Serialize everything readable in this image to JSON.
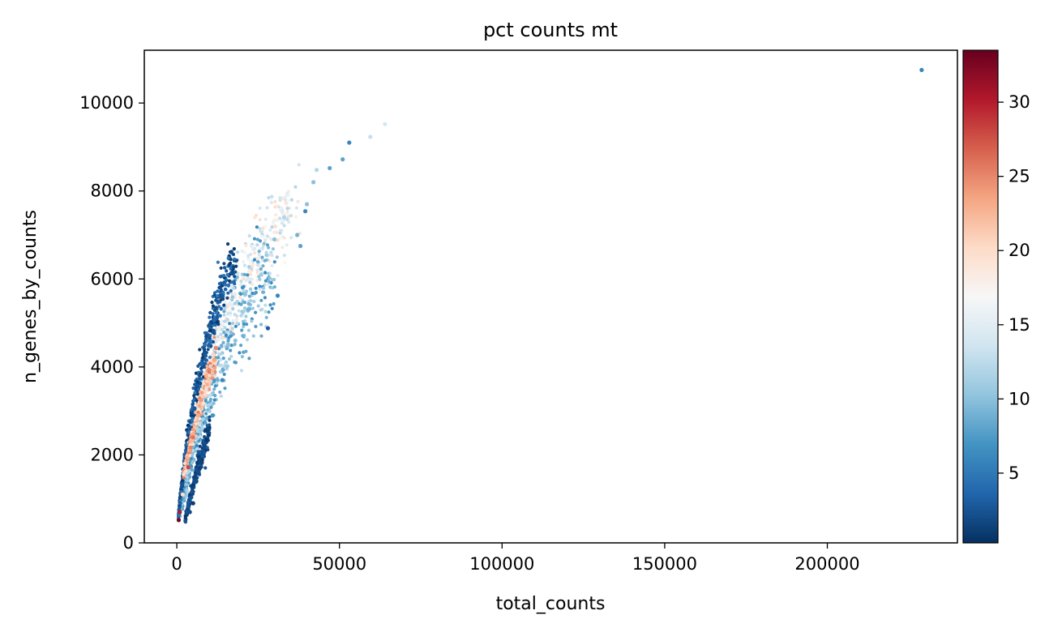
{
  "chart_data": {
    "type": "scatter",
    "title": "pct counts mt",
    "xlabel": "total_counts",
    "ylabel": "n_genes_by_counts",
    "xlim": [
      -10000,
      240000
    ],
    "ylim": [
      0,
      11200
    ],
    "xticks": [
      0,
      50000,
      100000,
      150000,
      200000
    ],
    "yticks": [
      0,
      2000,
      4000,
      6000,
      8000,
      10000
    ],
    "grid": false,
    "colormap": "RdBu_r",
    "colorbar": {
      "label": "",
      "range": [
        0.3,
        33.5
      ],
      "ticks": [
        5,
        10,
        15,
        20,
        25,
        30
      ],
      "stops": [
        "#053061",
        "#2166ac",
        "#4393c3",
        "#92c5de",
        "#d1e5f0",
        "#f7f7f7",
        "#fddbc7",
        "#f4a582",
        "#d6604d",
        "#b2182b",
        "#67001f"
      ]
    },
    "points": [
      {
        "x": 229000,
        "y": 10750,
        "c": 6
      },
      {
        "x": 64000,
        "y": 9520,
        "c": 14
      },
      {
        "x": 59500,
        "y": 9230,
        "c": 13
      },
      {
        "x": 53000,
        "y": 9100,
        "c": 6
      },
      {
        "x": 51000,
        "y": 8720,
        "c": 8
      },
      {
        "x": 47000,
        "y": 8520,
        "c": 8
      },
      {
        "x": 43000,
        "y": 8480,
        "c": 12
      },
      {
        "x": 42000,
        "y": 8200,
        "c": 10
      },
      {
        "x": 40000,
        "y": 7700,
        "c": 10
      },
      {
        "x": 39500,
        "y": 7540,
        "c": 6
      },
      {
        "x": 37000,
        "y": 7000,
        "c": 9
      },
      {
        "x": 38000,
        "y": 6750,
        "c": 8
      },
      {
        "x": 31000,
        "y": 5620,
        "c": 6
      },
      {
        "x": 28000,
        "y": 4880,
        "c": 3
      },
      {
        "x": 33000,
        "y": 7400,
        "c": 12
      },
      {
        "x": 30000,
        "y": 6900,
        "c": 10
      },
      {
        "x": 26000,
        "y": 6100,
        "c": 11
      },
      {
        "x": 22000,
        "y": 5300,
        "c": 9
      },
      {
        "x": 18000,
        "y": 4600,
        "c": 10
      },
      {
        "x": 14000,
        "y": 3700,
        "c": 6
      },
      {
        "x": 11000,
        "y": 2900,
        "c": 7
      },
      {
        "x": 12000,
        "y": 4430,
        "c": 25
      },
      {
        "x": 9000,
        "y": 3800,
        "c": 23
      },
      {
        "x": 7500,
        "y": 3250,
        "c": 24
      },
      {
        "x": 6500,
        "y": 2900,
        "c": 23
      },
      {
        "x": 5000,
        "y": 2400,
        "c": 26
      },
      {
        "x": 3500,
        "y": 1720,
        "c": 28
      },
      {
        "x": 1800,
        "y": 1100,
        "c": 20
      },
      {
        "x": 900,
        "y": 700,
        "c": 30
      },
      {
        "x": 600,
        "y": 520,
        "c": 33
      },
      {
        "x": 6000,
        "y": 1400,
        "c": 2
      },
      {
        "x": 5000,
        "y": 900,
        "c": 1
      },
      {
        "x": 4000,
        "y": 700,
        "c": 2
      }
    ],
    "clusters": [
      {
        "curve": [
          [
            500,
            500
          ],
          [
            2000,
            1200
          ],
          [
            4000,
            2000
          ],
          [
            6000,
            2800
          ],
          [
            9000,
            3700
          ],
          [
            13000,
            4700
          ],
          [
            18000,
            5600
          ],
          [
            24000,
            6400
          ],
          [
            30000,
            7100
          ],
          [
            36000,
            7700
          ]
        ],
        "spread": 0.06,
        "color_range": [
          12,
          20
        ]
      },
      {
        "curve": [
          [
            1000,
            700
          ],
          [
            3000,
            1400
          ],
          [
            5000,
            2100
          ],
          [
            8000,
            2900
          ],
          [
            12000,
            3800
          ],
          [
            17000,
            4700
          ],
          [
            23000,
            5500
          ],
          [
            29000,
            6200
          ]
        ],
        "spread": 0.09,
        "color_range": [
          6,
          13
        ]
      },
      {
        "curve": [
          [
            500,
            600
          ],
          [
            1500,
            1300
          ],
          [
            3000,
            2200
          ],
          [
            5000,
            3100
          ],
          [
            8000,
            4100
          ],
          [
            11000,
            5000
          ],
          [
            14000,
            5800
          ],
          [
            18000,
            6300
          ]
        ],
        "spread": 0.05,
        "color_range": [
          0.5,
          5
        ]
      },
      {
        "curve": [
          [
            2500,
            500
          ],
          [
            4000,
            1000
          ],
          [
            6000,
            1600
          ],
          [
            8000,
            2100
          ],
          [
            10000,
            2600
          ]
        ],
        "spread": 0.06,
        "color_range": [
          0.5,
          3
        ]
      },
      {
        "curve": [
          [
            2000,
            1500
          ],
          [
            4000,
            2200
          ],
          [
            6500,
            2900
          ],
          [
            9000,
            3600
          ],
          [
            12000,
            4300
          ]
        ],
        "spread": 0.04,
        "color_range": [
          19,
          26
        ]
      }
    ]
  }
}
